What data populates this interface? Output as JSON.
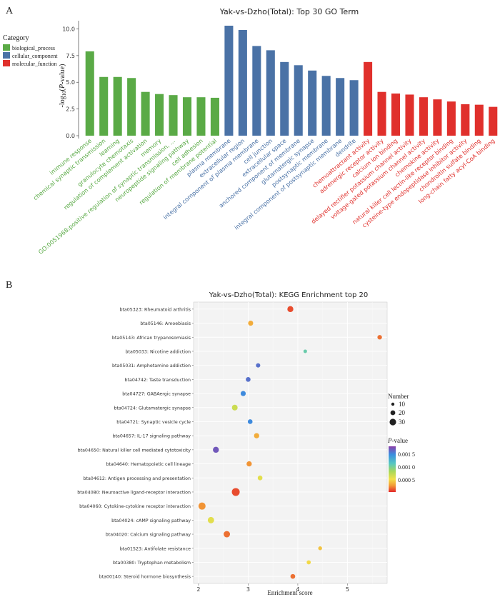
{
  "panels": {
    "a_label": "A",
    "b_label": "B"
  },
  "chart_data": [
    {
      "type": "bar",
      "title": "Yak-vs-Dzho(Total): Top 30 GO Term",
      "xlabel": "",
      "ylabel": "-log10(P-value)",
      "ylim": [
        0,
        10.5
      ],
      "yticks": [
        "0.0",
        "2.5",
        "5.0",
        "7.5",
        "10.0"
      ],
      "legend": {
        "title": "Category",
        "placement": "left",
        "entries": [
          {
            "name": "biological_process",
            "color": "#5aaa46"
          },
          {
            "name": "cellular_component",
            "color": "#4a72a6"
          },
          {
            "name": "molecular_function",
            "color": "#e0302c"
          }
        ]
      },
      "categories": [
        "immune response",
        "chemical synaptic transmission",
        "learning",
        "granulocyte chemotaxis",
        "regulation of complement activation",
        "memory",
        "GO:0051968:positive regulation of synaptic transmission, ...",
        "neuropeptide signaling pathway",
        "cell adhesion",
        "regulation of membrane potential",
        "plasma membrane",
        "extracellular region",
        "integral component of plasma membrane",
        "cell junction",
        "extracellular space",
        "anchored component of membrane",
        "glutamatergic synapse",
        "postsynaptic membrane",
        "integral component of postsynaptic membrane",
        "dendrite",
        "chemoattractant activity",
        "adrenergic receptor activity",
        "calcium ion binding",
        "delayed rectifier potassium channel activity",
        "voltage-gated potassium channel activity",
        "chemokine activity",
        "natural killer cell lectin-like receptor binding",
        "cysteine-type endopeptidase inhibitor activity",
        "chondroitin sulfate binding",
        "long-chain fatty acyl-CoA binding"
      ],
      "groups": [
        0,
        0,
        0,
        0,
        0,
        0,
        0,
        0,
        0,
        0,
        1,
        1,
        1,
        1,
        1,
        1,
        1,
        1,
        1,
        1,
        2,
        2,
        2,
        2,
        2,
        2,
        2,
        2,
        2,
        2
      ],
      "values": [
        7.9,
        5.5,
        5.5,
        5.4,
        4.1,
        3.9,
        3.8,
        3.6,
        3.6,
        3.55,
        10.3,
        9.9,
        8.4,
        8.0,
        6.9,
        6.6,
        6.1,
        5.6,
        5.4,
        5.2,
        6.9,
        4.1,
        3.95,
        3.85,
        3.6,
        3.4,
        3.2,
        2.95,
        2.9,
        2.7
      ]
    },
    {
      "type": "scatter",
      "title": "Yak-vs-Dzho(Total): KEGG Enrichment top 20",
      "xlabel": "Enrichment score",
      "ylabel": "",
      "xlim": [
        1.9,
        5.8
      ],
      "xticks": [
        "2",
        "3",
        "4",
        "5"
      ],
      "grid": true,
      "size_legend": {
        "title": "Number",
        "entries": [
          "10",
          "20",
          "30"
        ]
      },
      "color_legend": {
        "title": "P-value",
        "labels": [
          "0.001 5",
          "0.001 0",
          "0.000 5"
        ],
        "colors": [
          "#8b3fa8",
          "#3a8ee0",
          "#58c8c0",
          "#a8d85a",
          "#f2e04a",
          "#f29a36",
          "#e3282a"
        ]
      },
      "categories": [
        "bta05323: Rheumatoid arthritis",
        "bta05146: Amoebiasis",
        "bta05143: African trypanosomiasis",
        "bta05033: Nicotine addiction",
        "bta05031: Amphetamine addiction",
        "bta04742: Taste transduction",
        "bta04727: GABAergic synapse",
        "bta04724: Glutamatergic synapse",
        "bta04721: Synaptic vesicle cycle",
        "bta04657: IL-17 signaling pathway",
        "bta04650: Natural killer cell mediated cytotoxicity",
        "bta04640: Hematopoietic cell lineage",
        "bta04612: Antigen processing and presentation",
        "bta04080: Neuroactive ligand-receptor interaction",
        "bta04060: Cytokine-cytokine receptor interaction",
        "bta04024: cAMP signaling pathway",
        "bta04020: Calcium signaling pathway",
        "bta01523: Antifolate resistance",
        "bta00380: Tryptophan metabolism",
        "bta00140: Steroid hormone biosynthesis"
      ],
      "x": [
        3.85,
        3.05,
        5.65,
        4.15,
        3.2,
        3.0,
        2.9,
        2.73,
        3.04,
        3.17,
        2.35,
        3.02,
        3.24,
        2.75,
        2.07,
        2.25,
        2.57,
        4.45,
        4.22,
        3.9
      ],
      "number": [
        16,
        10,
        7,
        3,
        6,
        8,
        10,
        14,
        8,
        11,
        16,
        11,
        8,
        33,
        26,
        19,
        19,
        4,
        5,
        8
      ],
      "pvalue": [
        0.0001,
        0.0004,
        0.0002,
        0.0012,
        0.0017,
        0.0017,
        0.0016,
        0.0008,
        0.0016,
        0.0004,
        0.0018,
        0.0003,
        0.0007,
        0.0001,
        0.0003,
        0.0007,
        0.0002,
        0.0005,
        0.0006,
        0.0002
      ]
    }
  ]
}
